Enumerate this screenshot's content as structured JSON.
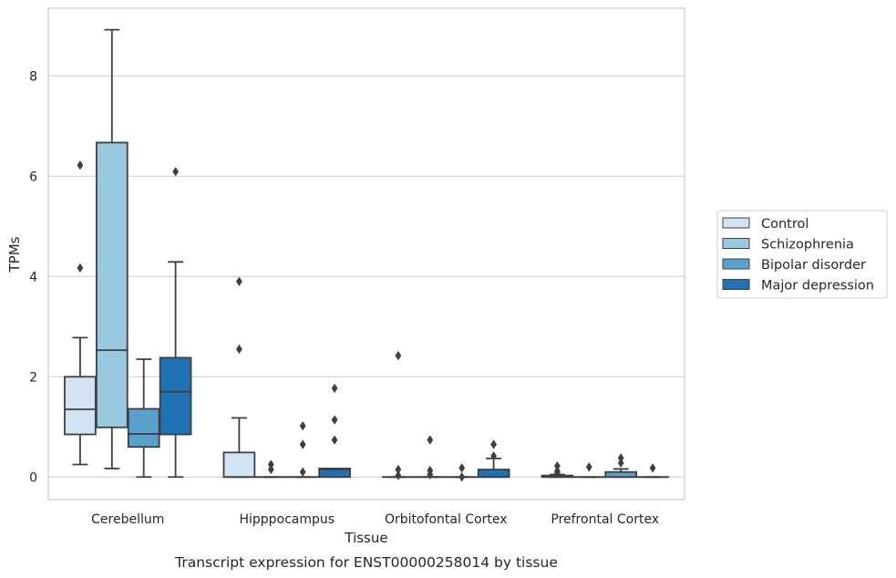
{
  "caption": "Transcript expression for ENST00000258014 by tissue",
  "chart_data": {
    "type": "box",
    "xlabel": "Tissue",
    "ylabel": "TPMs",
    "ylim": [
      -0.45,
      9.35
    ],
    "yticks": [
      0,
      2,
      4,
      6,
      8
    ],
    "grid": "horizontal",
    "legend_position": "right",
    "categories": [
      "Cerebellum",
      "Hipppocampus",
      "Orbitofontal Cortex",
      "Prefrontal Cortex"
    ],
    "series": [
      {
        "name": "Control",
        "color": "#d2e3f3",
        "boxes": [
          {
            "whislo": 0.25,
            "q1": 0.85,
            "med": 1.35,
            "q3": 2.0,
            "whishi": 2.78,
            "fliers": [
              4.17,
              6.22
            ]
          },
          {
            "whislo": 0.0,
            "q1": 0.0,
            "med": 0.0,
            "q3": 0.49,
            "whishi": 1.18,
            "fliers": [
              2.55,
              3.9
            ]
          },
          {
            "whislo": 0.0,
            "q1": 0.0,
            "med": 0.0,
            "q3": 0.0,
            "whishi": 0.0,
            "fliers": [
              0.03,
              0.15,
              2.42
            ]
          },
          {
            "whislo": 0.0,
            "q1": 0.0,
            "med": 0.0,
            "q3": 0.03,
            "whishi": 0.05,
            "fliers": [
              0.08,
              0.12,
              0.22
            ]
          }
        ]
      },
      {
        "name": "Schizophrenia",
        "color": "#9ac8e0",
        "boxes": [
          {
            "whislo": 0.17,
            "q1": 0.99,
            "med": 2.53,
            "q3": 6.67,
            "whishi": 8.92,
            "fliers": []
          },
          {
            "whislo": 0.0,
            "q1": 0.0,
            "med": 0.0,
            "q3": 0.0,
            "whishi": 0.0,
            "fliers": [
              0.15,
              0.25
            ]
          },
          {
            "whislo": 0.0,
            "q1": 0.0,
            "med": 0.0,
            "q3": 0.0,
            "whishi": 0.0,
            "fliers": [
              0.05,
              0.13,
              0.74
            ]
          },
          {
            "whislo": 0.0,
            "q1": 0.0,
            "med": 0.0,
            "q3": 0.0,
            "whishi": 0.0,
            "fliers": [
              0.2
            ]
          }
        ]
      },
      {
        "name": "Bipolar disorder",
        "color": "#5aa0cd",
        "boxes": [
          {
            "whislo": 0.0,
            "q1": 0.6,
            "med": 0.86,
            "q3": 1.36,
            "whishi": 2.35,
            "fliers": []
          },
          {
            "whislo": 0.0,
            "q1": 0.0,
            "med": 0.0,
            "q3": 0.0,
            "whishi": 0.0,
            "fliers": [
              0.1,
              0.65,
              1.02
            ]
          },
          {
            "whislo": 0.0,
            "q1": 0.0,
            "med": 0.0,
            "q3": 0.0,
            "whishi": 0.0,
            "fliers": [
              0.0,
              0.18
            ]
          },
          {
            "whislo": 0.0,
            "q1": 0.0,
            "med": 0.0,
            "q3": 0.1,
            "whishi": 0.16,
            "fliers": [
              0.28,
              0.38
            ]
          }
        ]
      },
      {
        "name": "Major depression",
        "color": "#2171b5",
        "boxes": [
          {
            "whislo": 0.0,
            "q1": 0.85,
            "med": 1.7,
            "q3": 2.38,
            "whishi": 4.29,
            "fliers": [
              6.09
            ]
          },
          {
            "whislo": 0.0,
            "q1": 0.0,
            "med": 0.15,
            "q3": 0.17,
            "whishi": 0.17,
            "fliers": [
              0.74,
              1.14,
              1.77
            ]
          },
          {
            "whislo": 0.0,
            "q1": 0.0,
            "med": 0.0,
            "q3": 0.15,
            "whishi": 0.37,
            "fliers": [
              0.42,
              0.65
            ]
          },
          {
            "whislo": 0.0,
            "q1": 0.0,
            "med": 0.0,
            "q3": 0.0,
            "whishi": 0.0,
            "fliers": [
              0.18
            ]
          }
        ]
      }
    ]
  }
}
